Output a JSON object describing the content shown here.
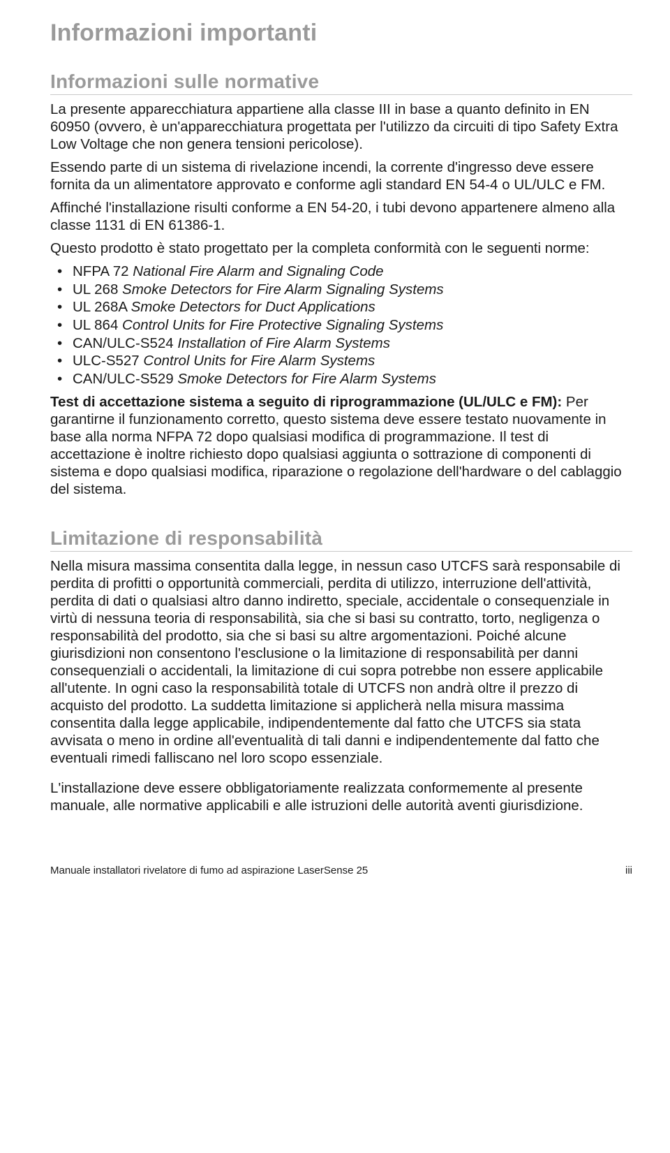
{
  "title": "Informazioni importanti",
  "section1": {
    "heading": "Informazioni sulle normative",
    "p1": "La presente apparecchiatura appartiene alla classe III in base a quanto definito in EN 60950 (ovvero, è un'apparecchiatura progettata per l'utilizzo da circuiti di tipo Safety Extra Low Voltage che non genera tensioni pericolose).",
    "p2": "Essendo parte di un sistema di rivelazione incendi, la corrente d'ingresso deve essere fornita da un alimentatore approvato e conforme agli standard EN 54-4 o UL/ULC e FM.",
    "p3": "Affinché l'installazione risulti conforme a EN 54-20, i tubi devono appartenere almeno alla classe 1131 di EN 61386-1.",
    "p4": "Questo prodotto è stato progettato per la completa conformità con le seguenti norme:",
    "bullets": [
      {
        "code": "NFPA 72",
        "title": "National Fire Alarm and Signaling Code"
      },
      {
        "code": "UL 268",
        "title": "Smoke Detectors for Fire Alarm Signaling Systems"
      },
      {
        "code": "UL 268A",
        "title": "Smoke Detectors for Duct Applications"
      },
      {
        "code": "UL 864",
        "title": "Control Units for Fire Protective Signaling Systems"
      },
      {
        "code": "CAN/ULC-S524",
        "title": "Installation of Fire Alarm Systems"
      },
      {
        "code": "ULC-S527",
        "title": "Control Units for Fire Alarm Systems"
      },
      {
        "code": "CAN/ULC-S529",
        "title": "Smoke Detectors for Fire Alarm Systems"
      }
    ],
    "p5_lead": "Test di accettazione sistema a seguito di riprogrammazione (UL/ULC e FM):",
    "p5_rest": " Per garantirne il funzionamento corretto, questo sistema deve essere testato nuovamente in base alla norma NFPA 72 dopo qualsiasi modifica di programmazione. Il test di accettazione è inoltre richiesto dopo qualsiasi aggiunta o sottrazione di componenti di sistema e dopo qualsiasi modifica, riparazione o regolazione dell'hardware o del cablaggio del sistema."
  },
  "section2": {
    "heading": "Limitazione di responsabilità",
    "p1": "Nella misura massima consentita dalla legge, in nessun caso UTCFS sarà responsabile di perdita di profitti o opportunità commerciali, perdita di utilizzo, interruzione dell'attività, perdita di dati o qualsiasi altro danno indiretto, speciale, accidentale o consequenziale in virtù di nessuna teoria di responsabilità, sia che si basi su contratto, torto, negligenza o responsabilità del prodotto, sia che si basi su altre argomentazioni. Poiché alcune giurisdizioni non consentono l'esclusione o la limitazione di responsabilità per danni consequenziali o accidentali, la limitazione di cui sopra potrebbe non essere applicabile all'utente. In ogni caso la responsabilità totale di UTCFS non andrà oltre il prezzo di acquisto del prodotto. La suddetta limitazione si applicherà nella misura massima consentita dalla legge applicabile, indipendentemente dal fatto che UTCFS sia stata avvisata o meno in ordine all'eventualità di tali danni e indipendentemente dal fatto che eventuali rimedi falliscano nel loro scopo essenziale.",
    "p2": "L'installazione deve essere obbligatoriamente realizzata conformemente al presente manuale, alle normative applicabili e alle istruzioni delle autorità aventi giurisdizione."
  },
  "footer": {
    "left": "Manuale installatori rivelatore di fumo ad aspirazione LaserSense 25",
    "right": "iii"
  }
}
